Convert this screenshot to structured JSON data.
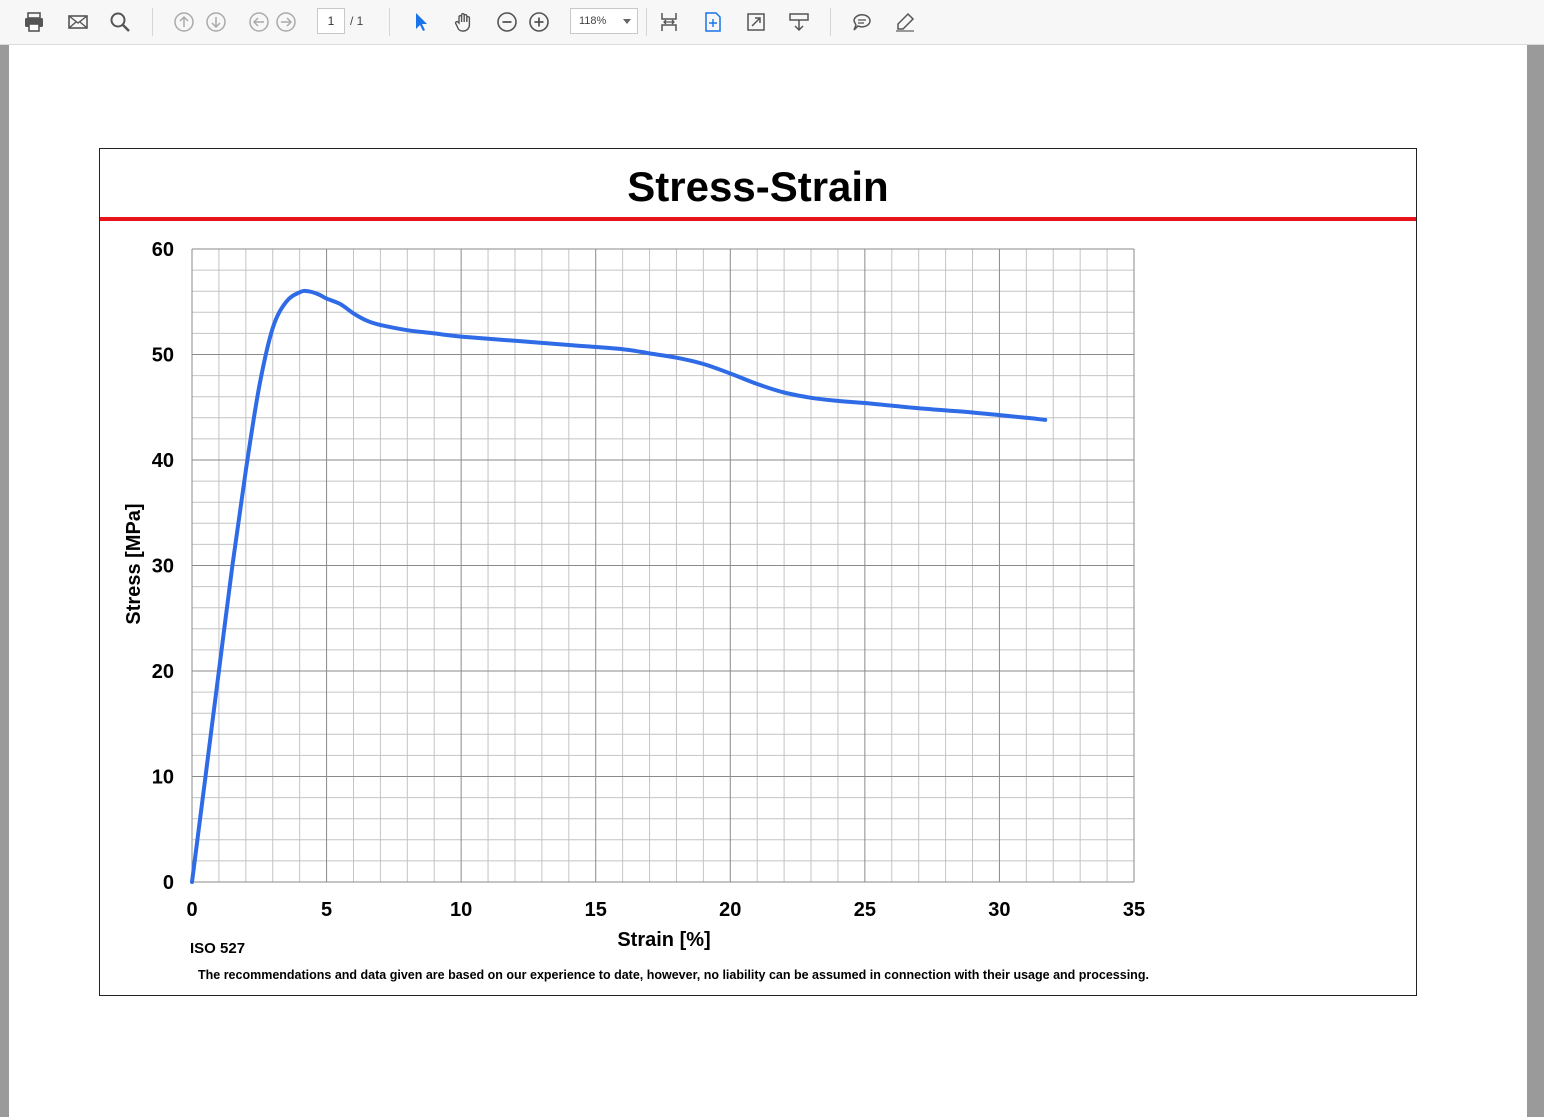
{
  "toolbar": {
    "page_current": "1",
    "page_total": "/ 1",
    "zoom": "118%",
    "buttons": [
      "print-icon",
      "email-icon",
      "search-icon",
      "previous-page-icon",
      "next-page-icon",
      "back-icon",
      "forward-icon",
      "select-tool-icon",
      "hand-tool-icon",
      "zoom-out-icon",
      "zoom-in-icon",
      "fit-width-icon",
      "fit-page-icon",
      "full-screen-icon",
      "read-mode-icon",
      "comment-icon",
      "highlight-icon"
    ]
  },
  "colors": {
    "accent_rule": "#e8141c",
    "series": "#2f6be6",
    "grid_major": "#8a8a8a",
    "grid_minor": "#c4c4c4"
  },
  "chart_data": {
    "type": "line",
    "title": "Stress-Strain",
    "xlabel": "Strain [%]",
    "ylabel": "Stress [MPa]",
    "xlim": [
      0,
      35
    ],
    "ylim": [
      0,
      60
    ],
    "xticks": [
      0,
      5,
      10,
      15,
      20,
      25,
      30,
      35
    ],
    "yticks": [
      0,
      10,
      20,
      30,
      40,
      50,
      60
    ],
    "grid": true,
    "series": [
      {
        "x": [
          0,
          0.5,
          1,
          1.5,
          2,
          2.5,
          3,
          3.5,
          4,
          4.3,
          4.7,
          5,
          5.5,
          6,
          6.5,
          7,
          8,
          9,
          10,
          12,
          14,
          16,
          17,
          18,
          19,
          20,
          21,
          22,
          23,
          24,
          25,
          27,
          29,
          31,
          31.7
        ],
        "y": [
          0,
          10,
          20,
          30,
          39,
          47,
          52.5,
          55,
          55.9,
          56,
          55.7,
          55.3,
          54.8,
          53.9,
          53.2,
          52.8,
          52.3,
          52,
          51.7,
          51.3,
          50.9,
          50.5,
          50.1,
          49.7,
          49.1,
          48.2,
          47.2,
          46.4,
          45.9,
          45.6,
          45.4,
          44.9,
          44.5,
          44,
          43.8
        ]
      }
    ]
  },
  "notes": {
    "standard": "ISO 527",
    "disclaimer": "The recommendations and data given are based on our experience to date, however, no liability can be assumed in connection with their usage and processing."
  }
}
